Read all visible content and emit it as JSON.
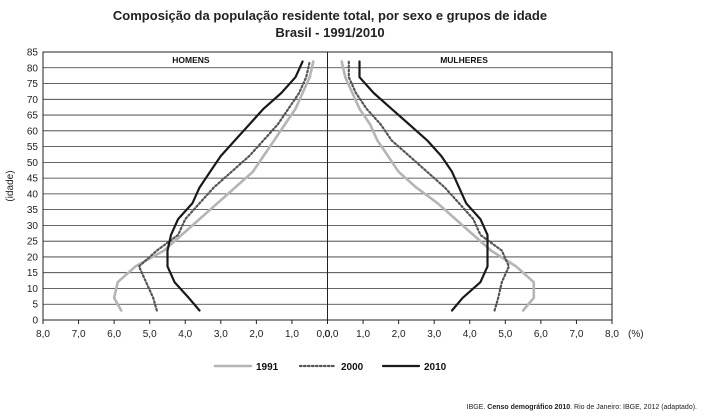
{
  "chart_data": {
    "type": "line",
    "title": "Composição da população residente total, por sexo e grupos de idade",
    "subtitle": "Brasil - 1991/2010",
    "ylabel": "(idade)",
    "xlabel_unit": "(%)",
    "panels": [
      {
        "name": "HOMENS",
        "side": "left"
      },
      {
        "name": "MULHERES",
        "side": "right"
      }
    ],
    "ages": [
      3,
      7,
      12,
      17,
      22,
      27,
      32,
      37,
      42,
      47,
      52,
      57,
      62,
      67,
      72,
      77,
      82
    ],
    "y_ticks": [
      0,
      5,
      10,
      15,
      20,
      25,
      30,
      35,
      40,
      45,
      50,
      55,
      60,
      65,
      70,
      75,
      80,
      85
    ],
    "ylim": [
      0,
      85
    ],
    "x_tick_labels": [
      "8,0",
      "7,0",
      "6,0",
      "5,0",
      "4,0",
      "3,0",
      "2,0",
      "1,0",
      "0,0",
      "0,0",
      "1,0",
      "2,0",
      "3,0",
      "4,0",
      "5,0",
      "6,0",
      "7,0",
      "8,0"
    ],
    "xlim": [
      0,
      8
    ],
    "series": [
      {
        "name": "1991",
        "color": "#b5b5b5",
        "dash": "solid",
        "men": [
          5.8,
          6.0,
          5.9,
          5.4,
          4.6,
          4.1,
          3.6,
          3.1,
          2.6,
          2.1,
          1.8,
          1.5,
          1.2,
          0.9,
          0.7,
          0.5,
          0.4
        ],
        "women": [
          5.5,
          5.8,
          5.8,
          5.3,
          4.6,
          4.1,
          3.6,
          3.1,
          2.5,
          2.0,
          1.7,
          1.4,
          1.2,
          0.9,
          0.7,
          0.5,
          0.4
        ]
      },
      {
        "name": "2000",
        "color": "#555555",
        "dash": "dotted",
        "men": [
          4.8,
          4.9,
          5.1,
          5.3,
          4.8,
          4.2,
          4.0,
          3.6,
          3.2,
          2.7,
          2.2,
          1.8,
          1.4,
          1.1,
          0.8,
          0.6,
          0.5
        ],
        "women": [
          4.7,
          4.8,
          4.9,
          5.1,
          4.9,
          4.3,
          4.1,
          3.7,
          3.3,
          2.8,
          2.3,
          1.8,
          1.5,
          1.1,
          0.8,
          0.6,
          0.6
        ]
      },
      {
        "name": "2010",
        "color": "#1a1a1a",
        "dash": "solid",
        "men": [
          3.6,
          3.9,
          4.3,
          4.5,
          4.5,
          4.4,
          4.2,
          3.8,
          3.6,
          3.3,
          3.0,
          2.6,
          2.2,
          1.8,
          1.3,
          0.9,
          0.7
        ],
        "women": [
          3.5,
          3.8,
          4.3,
          4.5,
          4.5,
          4.5,
          4.3,
          3.9,
          3.7,
          3.5,
          3.2,
          2.8,
          2.3,
          1.8,
          1.3,
          0.9,
          0.9
        ]
      }
    ],
    "legend_position": "bottom"
  },
  "source": {
    "prefix": "IBGE.",
    "title": "Censo demográfico 2010",
    "rest": ". Rio de Janeiro: IBGE, 2012 (adaptado)."
  }
}
